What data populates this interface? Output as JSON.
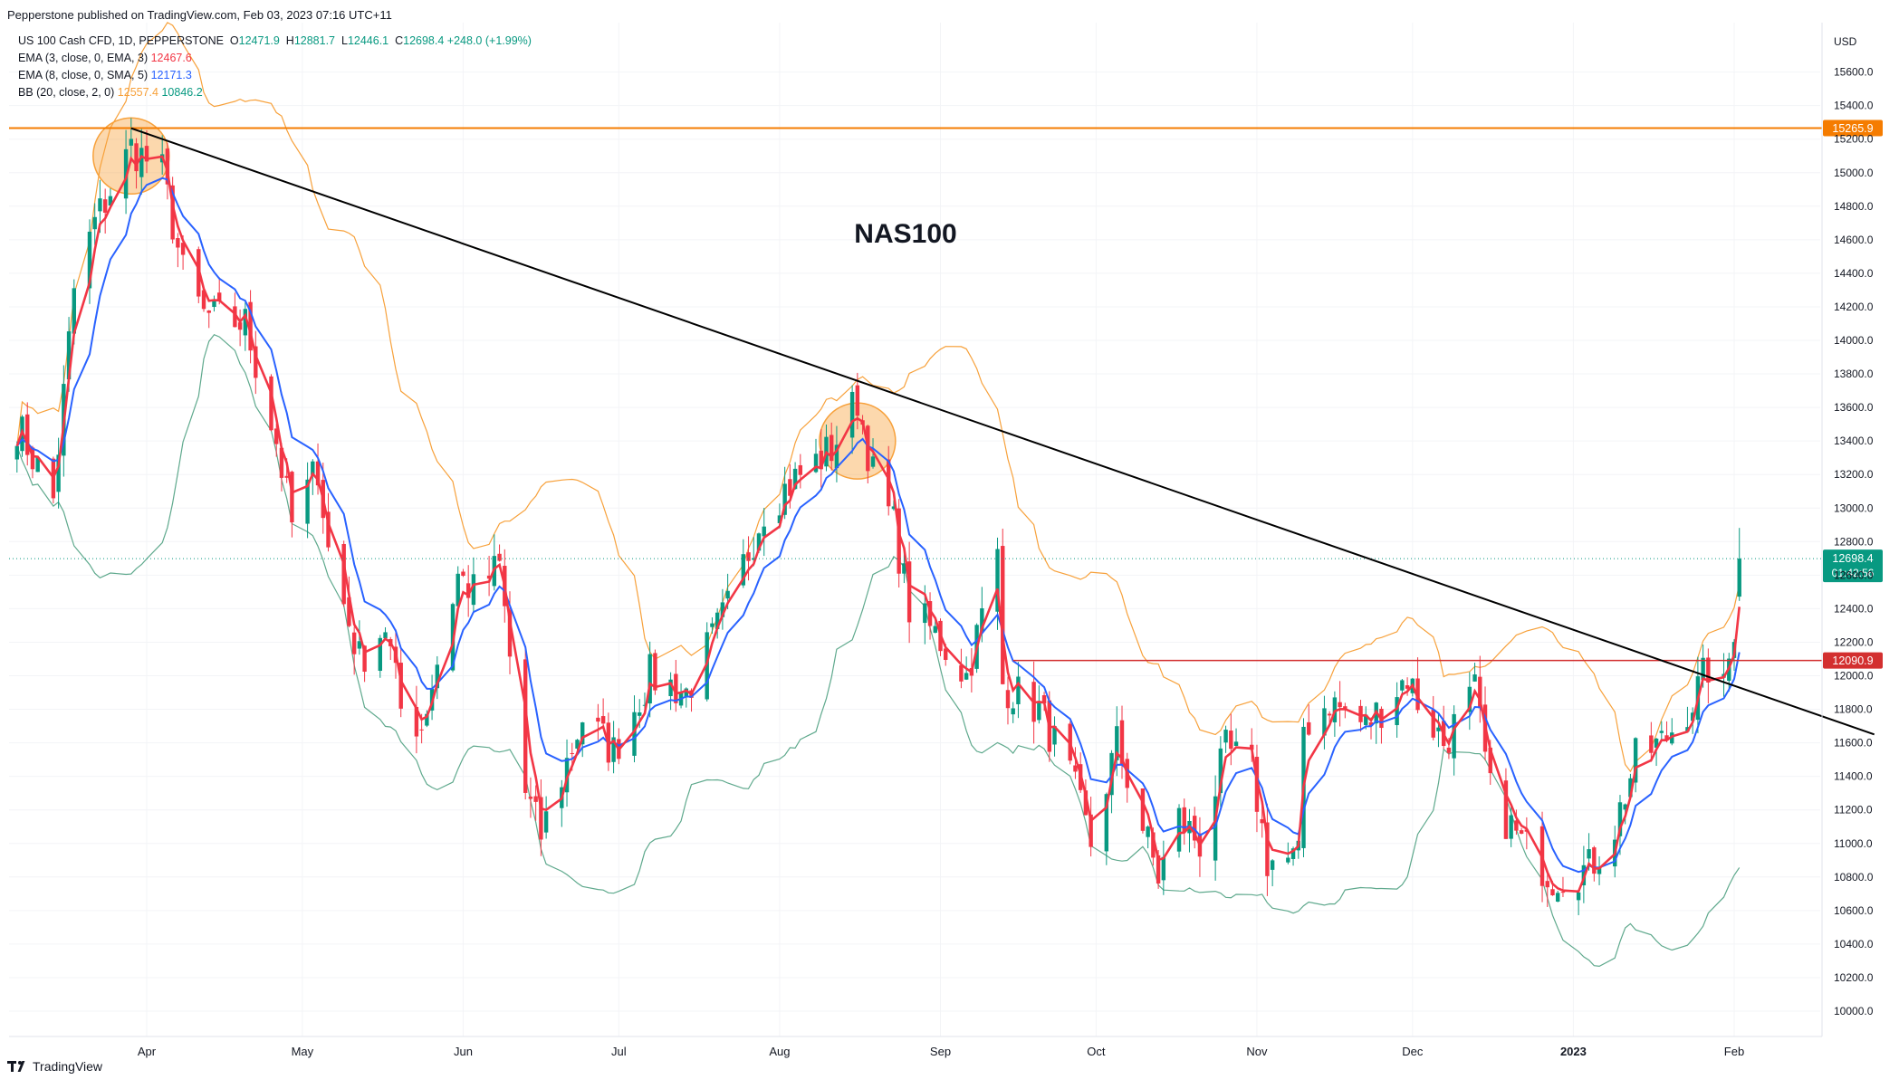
{
  "header": {
    "publisher_line": "Pepperstone published on TradingView.com, Feb 03, 2023 07:16 UTC+11"
  },
  "legend": {
    "symbol": "US 100 Cash CFD, 1D, PEPPERSTONE",
    "ohlc": {
      "o_label": "O",
      "o_value": "12471.9",
      "h_label": "H",
      "h_value": "12881.7",
      "l_label": "L",
      "l_value": "12446.1",
      "c_label": "C",
      "c_value": "12698.4",
      "change": "+248.0 (+1.99%)"
    },
    "ema3_label": "EMA (3, close, 0, EMA, 3)",
    "ema3_value": "12467.6",
    "ema8_label": "EMA (8, close, 0, SMA, 5)",
    "ema8_value": "12171.3",
    "bb_label": "BB (20, close, 2, 0)",
    "bb_upper": "12557.4",
    "bb_lower": "10846.2"
  },
  "footer": {
    "brand": "TradingView"
  },
  "colors": {
    "bull": "#089981",
    "bear": "#f23645",
    "ema3": "#f23645",
    "ema8": "#2962ff",
    "bb": "#f7a13b",
    "bb_lower": "#5fa98d",
    "resistance": "#f57c00",
    "support": "#d32f2f",
    "trendline": "#000000",
    "highlight_circle": "#f7a13b"
  },
  "chart_data": {
    "type": "candlestick",
    "title": "NAS100",
    "currency": "USD",
    "y_ticks": [
      10000,
      10200,
      10400,
      10600,
      10800,
      11000,
      11200,
      11400,
      11600,
      11800,
      12000,
      12200,
      12400,
      12600,
      12800,
      13000,
      13200,
      13400,
      13600,
      13800,
      14000,
      14200,
      14400,
      14600,
      14800,
      15000,
      15200,
      15400,
      15600
    ],
    "ylim": [
      9900,
      15750
    ],
    "x_ticks": [
      "Apr",
      "May",
      "Jun",
      "Jul",
      "Aug",
      "Sep",
      "Oct",
      "Nov",
      "Dec",
      "2023",
      "Feb"
    ],
    "horizontal_levels": [
      {
        "name": "resistance",
        "value": 15265.9,
        "label": "15265.9"
      },
      {
        "name": "support",
        "value": 12090.9,
        "label": "12090.9"
      }
    ],
    "current_price": {
      "value": 12698.4,
      "label": "12698.4",
      "countdown": "01:42:56"
    },
    "trendline": {
      "from": {
        "date": "2022-03-29",
        "value": 15265
      },
      "to": {
        "date": "2023-02-28",
        "value": 11650
      }
    },
    "highlights": [
      {
        "date": "2022-03-29",
        "value": 15100
      },
      {
        "date": "2022-08-16",
        "value": 13400
      }
    ],
    "anchors": [
      [
        "2022-03-07",
        13500
      ],
      [
        "2022-03-14",
        13050
      ],
      [
        "2022-03-18",
        14300
      ],
      [
        "2022-03-22",
        14700
      ],
      [
        "2022-03-29",
        15150
      ],
      [
        "2022-04-04",
        15000
      ],
      [
        "2022-04-08",
        14400
      ],
      [
        "2022-04-12",
        14150
      ],
      [
        "2022-04-20",
        14100
      ],
      [
        "2022-04-26",
        13400
      ],
      [
        "2022-04-29",
        12900
      ],
      [
        "2022-05-04",
        13250
      ],
      [
        "2022-05-06",
        12750
      ],
      [
        "2022-05-12",
        12100
      ],
      [
        "2022-05-17",
        12300
      ],
      [
        "2022-05-20",
        11800
      ],
      [
        "2022-05-24",
        11700
      ],
      [
        "2022-05-31",
        12600
      ],
      [
        "2022-06-03",
        12500
      ],
      [
        "2022-06-08",
        12650
      ],
      [
        "2022-06-13",
        11300
      ],
      [
        "2022-06-16",
        11050
      ],
      [
        "2022-06-24",
        11750
      ],
      [
        "2022-06-30",
        11550
      ],
      [
        "2022-07-07",
        12000
      ],
      [
        "2022-07-14",
        11900
      ],
      [
        "2022-07-22",
        12400
      ],
      [
        "2022-07-29",
        13000
      ],
      [
        "2022-08-05",
        13200
      ],
      [
        "2022-08-11",
        13350
      ],
      [
        "2022-08-16",
        13650
      ],
      [
        "2022-08-19",
        13200
      ],
      [
        "2022-08-23",
        12900
      ],
      [
        "2022-08-26",
        12400
      ],
      [
        "2022-08-31",
        12250
      ],
      [
        "2022-09-06",
        12000
      ],
      [
        "2022-09-12",
        12700
      ],
      [
        "2022-09-13",
        11950
      ],
      [
        "2022-09-20",
        11800
      ],
      [
        "2022-09-26",
        11400
      ],
      [
        "2022-09-30",
        11000
      ],
      [
        "2022-10-05",
        11600
      ],
      [
        "2022-10-10",
        11100
      ],
      [
        "2022-10-13",
        10800
      ],
      [
        "2022-10-17",
        11150
      ],
      [
        "2022-10-21",
        11000
      ],
      [
        "2022-10-26",
        11550
      ],
      [
        "2022-10-31",
        11450
      ],
      [
        "2022-11-03",
        10900
      ],
      [
        "2022-11-09",
        10900
      ],
      [
        "2022-11-10",
        11700
      ],
      [
        "2022-11-15",
        11850
      ],
      [
        "2022-11-22",
        11700
      ],
      [
        "2022-11-30",
        12000
      ],
      [
        "2022-12-02",
        11850
      ],
      [
        "2022-12-07",
        11600
      ],
      [
        "2022-12-13",
        11900
      ],
      [
        "2022-12-16",
        11300
      ],
      [
        "2022-12-22",
        11000
      ],
      [
        "2022-12-28",
        10800
      ],
      [
        "2023-01-04",
        10850
      ],
      [
        "2023-01-09",
        11100
      ],
      [
        "2023-01-13",
        11500
      ],
      [
        "2023-01-18",
        11600
      ],
      [
        "2023-01-24",
        11850
      ],
      [
        "2023-01-27",
        12050
      ],
      [
        "2023-01-30",
        11900
      ],
      [
        "2023-02-01",
        12300
      ],
      [
        "2023-02-02",
        12698
      ]
    ]
  }
}
